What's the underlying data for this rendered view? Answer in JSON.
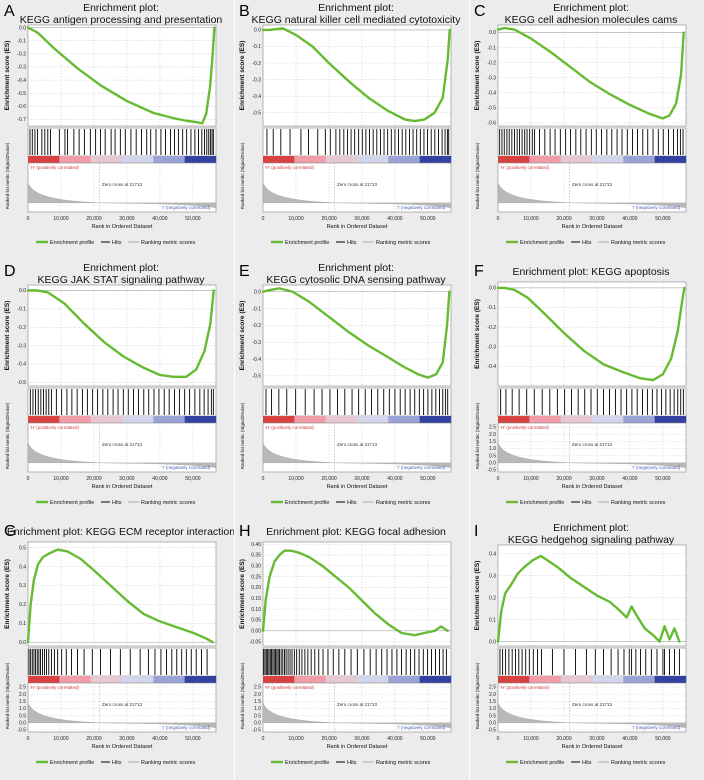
{
  "colors": {
    "es_line": "#66bb33",
    "panel_bg": "#ececec",
    "grid": "#c8c8c8",
    "hit": "#000000",
    "metric": "#b8b8b8",
    "pos_label": "#d23a3a",
    "neg_label": "#4a5fb5",
    "gradient": [
      "#d94040",
      "#f19ca9",
      "#e6c8d3",
      "#d3d5ea",
      "#9aa3d6",
      "#3341a0"
    ]
  },
  "legend": {
    "enrichment": "Enrichment profile",
    "hits": "Hits",
    "ranking": "Ranking metric scores"
  },
  "common": {
    "es_ylabel": "Enrichment score (ES)",
    "rank_ylabel": "Ranked list metric (Signal2Noise)",
    "xlabel": "Rank in Ordered Dataset",
    "zero_cross": "Zero cross at 21713",
    "pos_label": "'H' (positively correlated)",
    "neg_label": "'I' (negatively correlated)",
    "x_ticks": [
      "0",
      "10,000",
      "20,000",
      "30,000",
      "40,000",
      "50,000"
    ],
    "rank_ticks": [
      "2.5",
      "2.0",
      "1.5",
      "1.0",
      "0.5",
      "0.0",
      "-0.5"
    ]
  },
  "chart_data": [
    {
      "letter": "A",
      "title": [
        "Enrichment plot:",
        "KEGG antigen processing and presentation"
      ],
      "type": "line",
      "xlim": [
        0,
        57000
      ],
      "ylim": [
        -0.75,
        0.02
      ],
      "yticks": [
        0.0,
        -0.1,
        -0.2,
        -0.3,
        -0.4,
        -0.5,
        -0.6,
        -0.7
      ],
      "ytick_labels": [
        "0.0",
        "-0.1",
        "-0.2",
        "-0.3",
        "-0.4",
        "-0.5",
        "-0.6",
        "-0.7"
      ],
      "show_rank_ticks": false,
      "es_curve": [
        [
          0,
          0.0
        ],
        [
          3000,
          -0.04
        ],
        [
          8000,
          -0.16
        ],
        [
          15000,
          -0.31
        ],
        [
          22000,
          -0.44
        ],
        [
          30000,
          -0.56
        ],
        [
          38000,
          -0.65
        ],
        [
          44000,
          -0.69
        ],
        [
          48000,
          -0.71
        ],
        [
          51000,
          -0.72
        ],
        [
          52800,
          -0.73
        ],
        [
          54000,
          -0.66
        ],
        [
          55200,
          -0.45
        ],
        [
          56000,
          -0.2
        ],
        [
          56500,
          0.0
        ]
      ],
      "hits": [
        600,
        1300,
        2100,
        2900,
        4200,
        5100,
        6000,
        6800,
        9500,
        11200,
        12000,
        13900,
        15500,
        17100,
        18900,
        20500,
        22000,
        23400,
        25200,
        26400,
        28000,
        29500,
        31200,
        32800,
        34400,
        36000,
        37200,
        38800,
        40300,
        41700,
        43200,
        44400,
        45600,
        46900,
        48100,
        49400,
        50600,
        51700,
        52700,
        53500,
        54200,
        54800,
        55300,
        55800,
        56200
      ]
    },
    {
      "letter": "B",
      "title": [
        "Enrichment plot:",
        "KEGG natural killer cell mediated cytotoxicity"
      ],
      "type": "line",
      "xlim": [
        0,
        57000
      ],
      "ylim": [
        -0.58,
        0.03
      ],
      "yticks": [
        0.0,
        -0.1,
        -0.2,
        -0.3,
        -0.4,
        -0.5
      ],
      "ytick_labels": [
        "0.0",
        "-0.1",
        "-0.2",
        "-0.3",
        "-0.4",
        "-0.5"
      ],
      "show_rank_ticks": false,
      "es_curve": [
        [
          0,
          0.0
        ],
        [
          2000,
          0.0
        ],
        [
          6000,
          0.01
        ],
        [
          10000,
          -0.03
        ],
        [
          15000,
          -0.1
        ],
        [
          20000,
          -0.2
        ],
        [
          26000,
          -0.31
        ],
        [
          32000,
          -0.41
        ],
        [
          38000,
          -0.49
        ],
        [
          43000,
          -0.54
        ],
        [
          46000,
          -0.55
        ],
        [
          49000,
          -0.54
        ],
        [
          52000,
          -0.5
        ],
        [
          54500,
          -0.41
        ],
        [
          56000,
          -0.18
        ],
        [
          56600,
          0.0
        ]
      ],
      "hits": [
        1200,
        3100,
        5400,
        8200,
        11500,
        13800,
        16600,
        18900,
        20400,
        22100,
        23300,
        24500,
        25600,
        26700,
        27800,
        29000,
        30100,
        31200,
        32300,
        33400,
        34500,
        35600,
        36700,
        37800,
        38900,
        40000,
        41100,
        42200,
        43300,
        44400,
        45500,
        46600,
        47700,
        48800,
        49900,
        51000,
        52100,
        53200,
        54300,
        55200,
        55900,
        56300
      ]
    },
    {
      "letter": "C",
      "title": [
        "Enrichment plot:",
        "KEGG cell adhesion molecules cams"
      ],
      "type": "line",
      "xlim": [
        0,
        57000
      ],
      "ylim": [
        -0.62,
        0.05
      ],
      "yticks": [
        0.0,
        -0.1,
        -0.2,
        -0.3,
        -0.4,
        -0.5,
        -0.6
      ],
      "ytick_labels": [
        "0.0",
        "-0.1",
        "-0.2",
        "-0.3",
        "-0.4",
        "-0.5",
        "-0.6"
      ],
      "show_rank_ticks": false,
      "es_curve": [
        [
          0,
          0.02
        ],
        [
          2000,
          0.03
        ],
        [
          5000,
          0.02
        ],
        [
          10000,
          -0.04
        ],
        [
          16000,
          -0.13
        ],
        [
          22000,
          -0.23
        ],
        [
          28000,
          -0.33
        ],
        [
          34000,
          -0.41
        ],
        [
          40000,
          -0.48
        ],
        [
          46000,
          -0.54
        ],
        [
          50000,
          -0.57
        ],
        [
          52000,
          -0.55
        ],
        [
          54000,
          -0.47
        ],
        [
          55500,
          -0.28
        ],
        [
          56300,
          0.0
        ]
      ],
      "hits": [
        500,
        1200,
        1900,
        2700,
        3400,
        4200,
        5000,
        5800,
        6500,
        7300,
        8100,
        8800,
        9600,
        10400,
        11100,
        12600,
        14200,
        15800,
        17300,
        18900,
        20500,
        22000,
        23600,
        25100,
        26700,
        28300,
        29800,
        31400,
        33000,
        34500,
        36100,
        37600,
        39200,
        40800,
        42300,
        43900,
        45400,
        47000,
        48600,
        50100,
        51700,
        53200,
        54400,
        55300,
        56100
      ]
    },
    {
      "letter": "D",
      "title": [
        "Enrichment plot:",
        "KEGG JAK STAT signaling pathway"
      ],
      "type": "line",
      "xlim": [
        0,
        57000
      ],
      "ylim": [
        -0.52,
        0.03
      ],
      "yticks": [
        0.0,
        -0.1,
        -0.2,
        -0.3,
        -0.4,
        -0.5
      ],
      "ytick_labels": [
        "0.0",
        "-0.1",
        "-0.2",
        "-0.3",
        "-0.4",
        "-0.5"
      ],
      "show_rank_ticks": false,
      "es_curve": [
        [
          0,
          0.0
        ],
        [
          3000,
          0.0
        ],
        [
          6000,
          -0.01
        ],
        [
          11000,
          -0.07
        ],
        [
          17000,
          -0.18
        ],
        [
          23000,
          -0.28
        ],
        [
          29000,
          -0.36
        ],
        [
          35000,
          -0.42
        ],
        [
          40000,
          -0.46
        ],
        [
          44000,
          -0.47
        ],
        [
          48000,
          -0.47
        ],
        [
          51000,
          -0.43
        ],
        [
          53500,
          -0.33
        ],
        [
          55300,
          -0.18
        ],
        [
          56300,
          0.0
        ]
      ],
      "hits": [
        700,
        1500,
        2300,
        3100,
        3900,
        4700,
        5500,
        6300,
        7100,
        8600,
        10200,
        11800,
        13300,
        14900,
        16500,
        18000,
        19600,
        21100,
        22700,
        24200,
        25800,
        27300,
        28900,
        30400,
        32000,
        33500,
        35100,
        36600,
        38200,
        39700,
        41300,
        42800,
        44400,
        45900,
        47500,
        49000,
        50600,
        52100,
        53400,
        54600,
        55600,
        56200
      ]
    },
    {
      "letter": "E",
      "title": [
        "Enrichment plot:",
        "KEGG cytosolic DNA sensing pathway"
      ],
      "type": "line",
      "xlim": [
        0,
        57000
      ],
      "ylim": [
        -0.56,
        0.04
      ],
      "yticks": [
        0.0,
        -0.1,
        -0.2,
        -0.3,
        -0.4,
        -0.5
      ],
      "ytick_labels": [
        "0.0",
        "-0.1",
        "-0.2",
        "-0.3",
        "-0.4",
        "-0.5"
      ],
      "show_rank_ticks": false,
      "es_curve": [
        [
          0,
          0.0
        ],
        [
          2000,
          0.01
        ],
        [
          5000,
          0.02
        ],
        [
          9000,
          0.0
        ],
        [
          14000,
          -0.06
        ],
        [
          20000,
          -0.15
        ],
        [
          26000,
          -0.24
        ],
        [
          32000,
          -0.32
        ],
        [
          38000,
          -0.39
        ],
        [
          43000,
          -0.45
        ],
        [
          47000,
          -0.49
        ],
        [
          50000,
          -0.51
        ],
        [
          52500,
          -0.49
        ],
        [
          54500,
          -0.42
        ],
        [
          55800,
          -0.2
        ],
        [
          56500,
          0.0
        ]
      ],
      "hits": [
        900,
        2600,
        4800,
        7200,
        9900,
        12800,
        15500,
        17900,
        20300,
        22600,
        24800,
        27000,
        29000,
        31000,
        32900,
        34800,
        36600,
        38300,
        40000,
        41600,
        43100,
        44600,
        46000,
        47400,
        48700,
        50000,
        51200,
        52400,
        53500,
        54500,
        55300,
        56000
      ]
    },
    {
      "letter": "F",
      "title": [
        "Enrichment plot: KEGG apoptosis"
      ],
      "type": "line",
      "xlim": [
        0,
        57000
      ],
      "ylim": [
        -0.5,
        0.03
      ],
      "yticks": [
        0.0,
        -0.1,
        -0.2,
        -0.3,
        -0.4
      ],
      "ytick_labels": [
        "0.0",
        "-0.1",
        "-0.2",
        "-0.3",
        "-0.4"
      ],
      "show_rank_ticks": true,
      "es_curve": [
        [
          0,
          0.0
        ],
        [
          2000,
          0.0
        ],
        [
          5000,
          -0.01
        ],
        [
          9000,
          -0.05
        ],
        [
          14000,
          -0.13
        ],
        [
          20000,
          -0.23
        ],
        [
          26000,
          -0.32
        ],
        [
          32000,
          -0.39
        ],
        [
          38000,
          -0.43
        ],
        [
          43000,
          -0.46
        ],
        [
          47000,
          -0.47
        ],
        [
          50000,
          -0.44
        ],
        [
          52500,
          -0.36
        ],
        [
          54500,
          -0.22
        ],
        [
          56000,
          -0.05
        ],
        [
          56500,
          0.0
        ]
      ],
      "hits": [
        800,
        2400,
        4300,
        6400,
        8700,
        11000,
        13400,
        15700,
        18000,
        20200,
        22300,
        24300,
        26300,
        28200,
        30100,
        32000,
        33800,
        35600,
        37300,
        39000,
        40600,
        42200,
        43800,
        45300,
        46800,
        48200,
        49600,
        50900,
        52200,
        53400,
        54500,
        55400,
        56200
      ]
    },
    {
      "letter": "G",
      "title": [
        "Enrichment plot: KEGG ECM receptor interaction"
      ],
      "type": "line",
      "xlim": [
        0,
        57000
      ],
      "ylim": [
        -0.02,
        0.53
      ],
      "yticks": [
        0.0,
        0.1,
        0.2,
        0.3,
        0.4,
        0.5
      ],
      "ytick_labels": [
        "0.0",
        "0.1",
        "0.2",
        "0.3",
        "0.4",
        "0.5"
      ],
      "show_rank_ticks": true,
      "es_curve": [
        [
          0,
          0.0
        ],
        [
          800,
          0.2
        ],
        [
          1800,
          0.33
        ],
        [
          3000,
          0.41
        ],
        [
          4500,
          0.45
        ],
        [
          6500,
          0.47
        ],
        [
          9000,
          0.49
        ],
        [
          12000,
          0.48
        ],
        [
          16000,
          0.44
        ],
        [
          20000,
          0.38
        ],
        [
          25000,
          0.3
        ],
        [
          30000,
          0.22
        ],
        [
          35000,
          0.15
        ],
        [
          40000,
          0.11
        ],
        [
          45000,
          0.08
        ],
        [
          50000,
          0.05
        ],
        [
          54000,
          0.02
        ],
        [
          56000,
          0.0
        ]
      ],
      "hits": [
        300,
        800,
        1300,
        1800,
        2300,
        2800,
        3300,
        3800,
        4400,
        5000,
        5600,
        6300,
        7100,
        8000,
        9000,
        10200,
        11600,
        13200,
        15000,
        17000,
        19500,
        22000,
        25000,
        28000,
        31000,
        34000,
        36500,
        38500,
        40300,
        42000,
        43600,
        45100,
        46600,
        48000,
        49500,
        51000,
        52600,
        54300
      ]
    },
    {
      "letter": "H",
      "title": [
        "Enrichment plot: KEGG focal adhesion"
      ],
      "type": "line",
      "xlim": [
        0,
        57000
      ],
      "ylim": [
        -0.07,
        0.41
      ],
      "yticks": [
        -0.05,
        0.0,
        0.05,
        0.1,
        0.15,
        0.2,
        0.25,
        0.3,
        0.35,
        0.4
      ],
      "ytick_labels": [
        "-0.05",
        "0.00",
        "0.05",
        "0.10",
        "0.15",
        "0.20",
        "0.25",
        "0.30",
        "0.35",
        "0.40"
      ],
      "show_rank_ticks": true,
      "es_curve": [
        [
          0,
          0.0
        ],
        [
          800,
          0.14
        ],
        [
          2000,
          0.25
        ],
        [
          3500,
          0.32
        ],
        [
          5000,
          0.35
        ],
        [
          6500,
          0.37
        ],
        [
          8500,
          0.37
        ],
        [
          11000,
          0.36
        ],
        [
          14000,
          0.34
        ],
        [
          18000,
          0.3
        ],
        [
          22000,
          0.25
        ],
        [
          26000,
          0.2
        ],
        [
          30000,
          0.14
        ],
        [
          34000,
          0.08
        ],
        [
          38000,
          0.03
        ],
        [
          42000,
          -0.01
        ],
        [
          46000,
          -0.02
        ],
        [
          49000,
          -0.01
        ],
        [
          52000,
          0.0
        ],
        [
          54000,
          0.02
        ],
        [
          56000,
          0.0
        ]
      ],
      "hits": [
        200,
        600,
        1000,
        1400,
        1800,
        2200,
        2600,
        3000,
        3400,
        3800,
        4200,
        4600,
        5000,
        5500,
        6000,
        6500,
        7000,
        7600,
        8200,
        8800,
        9500,
        10200,
        11000,
        11800,
        12700,
        13600,
        14600,
        15700,
        16900,
        18200,
        19700,
        21300,
        23000,
        24800,
        26700,
        28600,
        30600,
        32500,
        34300,
        36000,
        37600,
        39100,
        40600,
        42000,
        43400,
        44700,
        46000,
        47300,
        48600,
        49900,
        51100,
        52300,
        53500,
        54600,
        55600
      ]
    },
    {
      "letter": "I",
      "title": [
        "Enrichment plot:",
        "KEGG hedgehog signaling pathway"
      ],
      "type": "line",
      "xlim": [
        0,
        57000
      ],
      "ylim": [
        -0.02,
        0.44
      ],
      "yticks": [
        0.0,
        0.1,
        0.2,
        0.3,
        0.4
      ],
      "ytick_labels": [
        "0.0",
        "0.1",
        "0.2",
        "0.3",
        "0.4"
      ],
      "show_rank_ticks": true,
      "es_curve": [
        [
          0,
          0.0
        ],
        [
          1000,
          0.14
        ],
        [
          2200,
          0.22
        ],
        [
          4000,
          0.26
        ],
        [
          6000,
          0.31
        ],
        [
          8000,
          0.34
        ],
        [
          10500,
          0.37
        ],
        [
          13000,
          0.39
        ],
        [
          15000,
          0.37
        ],
        [
          18000,
          0.34
        ],
        [
          22000,
          0.29
        ],
        [
          26000,
          0.25
        ],
        [
          30000,
          0.21
        ],
        [
          34000,
          0.18
        ],
        [
          37000,
          0.14
        ],
        [
          39000,
          0.11
        ],
        [
          40500,
          0.16
        ],
        [
          42000,
          0.12
        ],
        [
          44500,
          0.06
        ],
        [
          47000,
          0.03
        ],
        [
          49000,
          0.0
        ],
        [
          50500,
          0.07
        ],
        [
          52000,
          0.01
        ],
        [
          53500,
          0.06
        ],
        [
          55000,
          0.0
        ]
      ],
      "hits": [
        600,
        1400,
        2300,
        3300,
        4300,
        5300,
        6300,
        7300,
        8400,
        9500,
        10700,
        12000,
        13200,
        16500,
        20000,
        23500,
        26800,
        29500,
        32000,
        34300,
        36400,
        38200,
        39800,
        40500,
        41800,
        43200,
        44800,
        46500,
        48200,
        50000,
        50500,
        52000,
        53500,
        55000
      ]
    }
  ]
}
